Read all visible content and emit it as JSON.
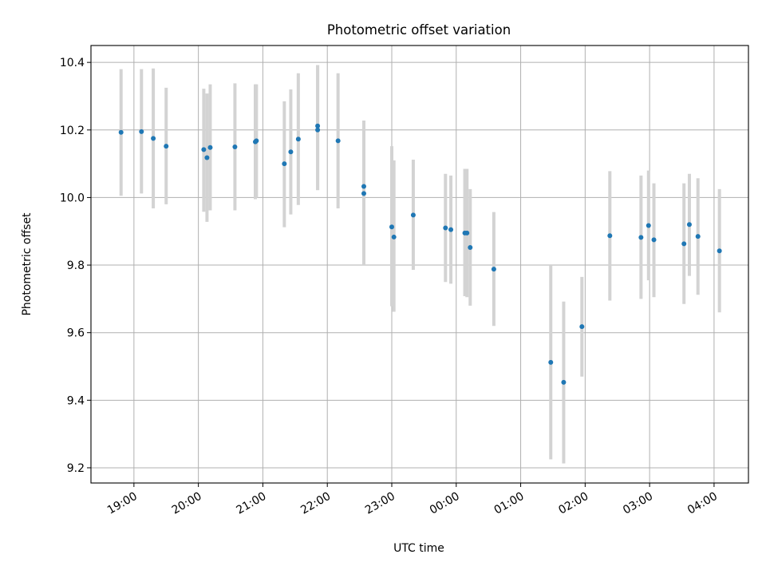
{
  "chart_data": {
    "type": "scatter",
    "title": "Photometric offset variation",
    "xlabel": "UTC time",
    "ylabel": "Photometric offset",
    "x_ticks": [
      "19:00",
      "20:00",
      "21:00",
      "22:00",
      "23:00",
      "00:00",
      "01:00",
      "02:00",
      "03:00",
      "04:00"
    ],
    "x_tick_hours": [
      19,
      20,
      21,
      22,
      23,
      24,
      25,
      26,
      27,
      28
    ],
    "y_ticks": [
      "9.2",
      "9.4",
      "9.6",
      "9.8",
      "10.0",
      "10.2",
      "10.4"
    ],
    "y_tick_values": [
      9.2,
      9.4,
      9.6,
      9.8,
      10.0,
      10.2,
      10.4
    ],
    "xlim": [
      "18:20",
      "04:32"
    ],
    "ylim": [
      9.155,
      10.45
    ],
    "grid": true,
    "colors": {
      "marker": "#1f77b4",
      "errorbar": "#d3d3d3",
      "grid": "#b0b0b0"
    },
    "points": [
      {
        "t": "18:48",
        "y": 10.193,
        "lo": 10.005,
        "hi": 10.38
      },
      {
        "t": "19:07",
        "y": 10.195,
        "lo": 10.012,
        "hi": 10.38
      },
      {
        "t": "19:18",
        "y": 10.175,
        "lo": 9.968,
        "hi": 10.382
      },
      {
        "t": "19:30",
        "y": 10.152,
        "lo": 9.98,
        "hi": 10.325
      },
      {
        "t": "20:05",
        "y": 10.142,
        "lo": 9.958,
        "hi": 10.322
      },
      {
        "t": "20:08",
        "y": 10.118,
        "lo": 9.928,
        "hi": 10.308
      },
      {
        "t": "20:11",
        "y": 10.148,
        "lo": 9.962,
        "hi": 10.335
      },
      {
        "t": "20:34",
        "y": 10.15,
        "lo": 9.962,
        "hi": 10.338
      },
      {
        "t": "20:53",
        "y": 10.165,
        "lo": 9.995,
        "hi": 10.335
      },
      {
        "t": "20:54",
        "y": 10.168,
        "lo": 10.0,
        "hi": 10.335
      },
      {
        "t": "21:20",
        "y": 10.1,
        "lo": 9.912,
        "hi": 10.285
      },
      {
        "t": "21:26",
        "y": 10.135,
        "lo": 9.95,
        "hi": 10.32
      },
      {
        "t": "21:33",
        "y": 10.173,
        "lo": 9.978,
        "hi": 10.368
      },
      {
        "t": "21:51",
        "y": 10.212,
        "lo": 10.022,
        "hi": 10.392
      },
      {
        "t": "21:51",
        "y": 10.2,
        "lo": 10.022,
        "hi": 10.392
      },
      {
        "t": "22:10",
        "y": 10.168,
        "lo": 9.968,
        "hi": 10.368
      },
      {
        "t": "22:34",
        "y": 10.033,
        "lo": 9.8,
        "hi": 10.228
      },
      {
        "t": "22:34",
        "y": 10.012,
        "lo": 9.8,
        "hi": 10.228
      },
      {
        "t": "23:00",
        "y": 9.913,
        "lo": 9.678,
        "hi": 10.152
      },
      {
        "t": "23:02",
        "y": 9.883,
        "lo": 9.662,
        "hi": 10.11
      },
      {
        "t": "23:20",
        "y": 9.948,
        "lo": 9.786,
        "hi": 10.112
      },
      {
        "t": "23:50",
        "y": 9.91,
        "lo": 9.75,
        "hi": 10.07
      },
      {
        "t": "23:55",
        "y": 9.905,
        "lo": 9.745,
        "hi": 10.065
      },
      {
        "t": "00:08",
        "y": 9.895,
        "lo": 9.708,
        "hi": 10.085
      },
      {
        "t": "00:10",
        "y": 9.895,
        "lo": 9.705,
        "hi": 10.085
      },
      {
        "t": "00:13",
        "y": 9.852,
        "lo": 9.68,
        "hi": 10.025
      },
      {
        "t": "00:35",
        "y": 9.788,
        "lo": 9.62,
        "hi": 9.957
      },
      {
        "t": "01:28",
        "y": 9.512,
        "lo": 9.225,
        "hi": 9.798
      },
      {
        "t": "01:40",
        "y": 9.453,
        "lo": 9.213,
        "hi": 9.692
      },
      {
        "t": "01:57",
        "y": 9.618,
        "lo": 9.47,
        "hi": 9.765
      },
      {
        "t": "02:23",
        "y": 9.887,
        "lo": 9.695,
        "hi": 10.078
      },
      {
        "t": "02:52",
        "y": 9.882,
        "lo": 9.7,
        "hi": 10.065
      },
      {
        "t": "02:59",
        "y": 9.917,
        "lo": 9.755,
        "hi": 10.08
      },
      {
        "t": "03:04",
        "y": 9.875,
        "lo": 9.705,
        "hi": 10.042
      },
      {
        "t": "03:32",
        "y": 9.863,
        "lo": 9.685,
        "hi": 10.042
      },
      {
        "t": "03:37",
        "y": 9.92,
        "lo": 9.768,
        "hi": 10.07
      },
      {
        "t": "03:45",
        "y": 9.885,
        "lo": 9.712,
        "hi": 10.057
      },
      {
        "t": "04:05",
        "y": 9.842,
        "lo": 9.66,
        "hi": 10.025
      }
    ]
  }
}
